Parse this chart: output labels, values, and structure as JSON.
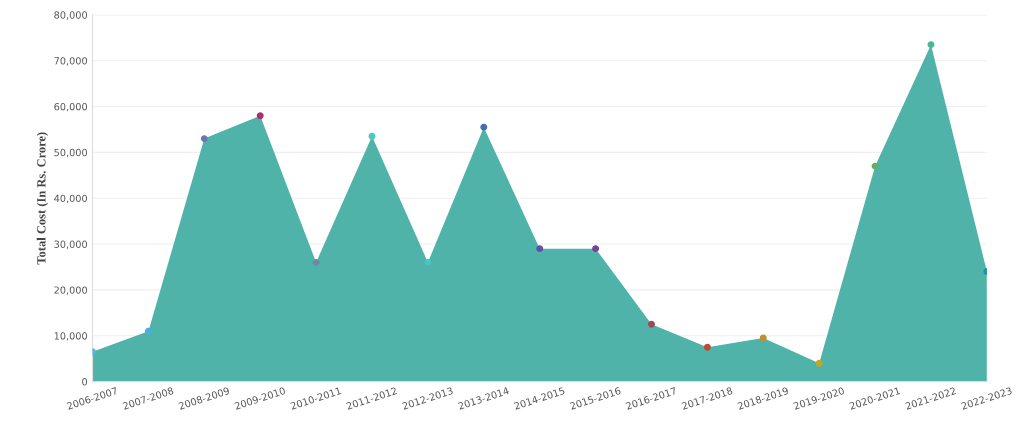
{
  "chart_data": {
    "type": "area",
    "ylabel": "Total Cost (In Rs. Crore)",
    "categories": [
      "2006-2007",
      "2007-2008",
      "2008-2009",
      "2009-2010",
      "2010-2011",
      "2011-2012",
      "2012-2013",
      "2013-2014",
      "2014-2015",
      "2015-2016",
      "2016-2017",
      "2017-2018",
      "2018-2019",
      "2019-2020",
      "2020-2021",
      "2021-2022",
      "2022-2023"
    ],
    "series": [
      {
        "color": "#4fb3a9",
        "colors": [
          "#4cb8e6",
          "#4aaee0",
          "#6a78b0",
          "#a8306e",
          "#6f8aa0",
          "#4ec8c0",
          "#4cc2c4",
          "#4a6ab0",
          "#6050a8",
          "#7a3f98",
          "#a04a50",
          "#b84a38",
          "#c09030",
          "#c0a828",
          "#60b068",
          "#48b890",
          "#1890b8"
        ],
        "values": [
          6500,
          11000,
          53000,
          58000,
          26000,
          53500,
          26000,
          55500,
          29000,
          29000,
          12500,
          7500,
          9500,
          4000,
          47000,
          73500,
          24000
        ]
      }
    ],
    "ylim": [
      0,
      80000
    ],
    "yticks": [
      {
        "value": 0,
        "label": "0"
      },
      {
        "value": 10000,
        "label": "10,000"
      },
      {
        "value": 20000,
        "label": "20,000"
      },
      {
        "value": 30000,
        "label": "30,000"
      },
      {
        "value": 40000,
        "label": "40,000"
      },
      {
        "value": 50000,
        "label": "50,000"
      },
      {
        "value": 60000,
        "label": "60,000"
      },
      {
        "value": 70000,
        "label": "70,000"
      },
      {
        "value": 80000,
        "label": "80,000"
      }
    ],
    "grid": "y",
    "marker": "circle"
  }
}
